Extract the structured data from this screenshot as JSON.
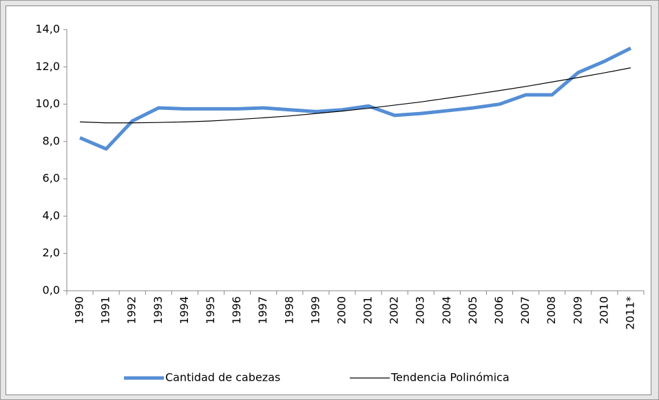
{
  "chart_data": {
    "type": "line",
    "categories": [
      "1990",
      "1991",
      "1992",
      "1993",
      "1994",
      "1995",
      "1996",
      "1997",
      "1998",
      "1999",
      "2000",
      "2001",
      "2002",
      "2003",
      "2004",
      "2005",
      "2006",
      "2007",
      "2008",
      "2009",
      "2010",
      "2011*"
    ],
    "series": [
      {
        "name": "Cantidad de cabezas",
        "color": "#558ed5",
        "values": [
          8.2,
          7.6,
          9.1,
          9.8,
          9.75,
          9.75,
          9.75,
          9.8,
          9.7,
          9.6,
          9.7,
          9.9,
          9.4,
          9.5,
          9.65,
          9.8,
          10.0,
          10.5,
          10.5,
          11.7,
          12.3,
          13.0
        ]
      },
      {
        "name": "Tendencia Polinómica",
        "color": "#000000",
        "values": [
          9.05,
          9.0,
          9.0,
          9.02,
          9.05,
          9.1,
          9.18,
          9.27,
          9.37,
          9.5,
          9.63,
          9.78,
          9.95,
          10.12,
          10.32,
          10.52,
          10.73,
          10.95,
          11.19,
          11.43,
          11.68,
          11.95
        ]
      }
    ],
    "ylim": [
      0,
      14
    ],
    "yticks": [
      {
        "value": 0,
        "label": "0,0"
      },
      {
        "value": 2,
        "label": "2,0"
      },
      {
        "value": 4,
        "label": "4,0"
      },
      {
        "value": 6,
        "label": "6,0"
      },
      {
        "value": 8,
        "label": "8,0"
      },
      {
        "value": 10,
        "label": "10,0"
      },
      {
        "value": 12,
        "label": "12,0"
      },
      {
        "value": 14,
        "label": "14,0"
      }
    ],
    "grid": false
  }
}
